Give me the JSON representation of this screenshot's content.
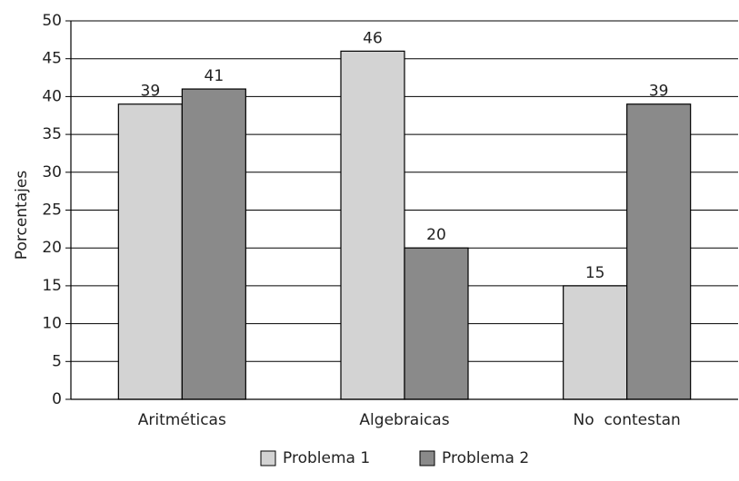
{
  "chart_data": {
    "type": "bar",
    "title": "",
    "xlabel": "",
    "ylabel": "Porcentajes",
    "ylim": [
      0,
      50
    ],
    "yticks": [
      0,
      5,
      10,
      15,
      20,
      25,
      30,
      35,
      40,
      45,
      50
    ],
    "categories": [
      "Aritméticas",
      "Algebraicas",
      "No  contestan"
    ],
    "series": [
      {
        "name": "Problema 1",
        "values": [
          39,
          46,
          15
        ],
        "color": "#d3d3d3"
      },
      {
        "name": "Problema 2",
        "values": [
          41,
          20,
          39
        ],
        "color": "#8a8a8a"
      }
    ],
    "data_labels": [
      [
        "39",
        "46",
        "15"
      ],
      [
        "41",
        "20",
        "39"
      ]
    ],
    "grid": "horizontal",
    "legend_position": "bottom-center"
  }
}
